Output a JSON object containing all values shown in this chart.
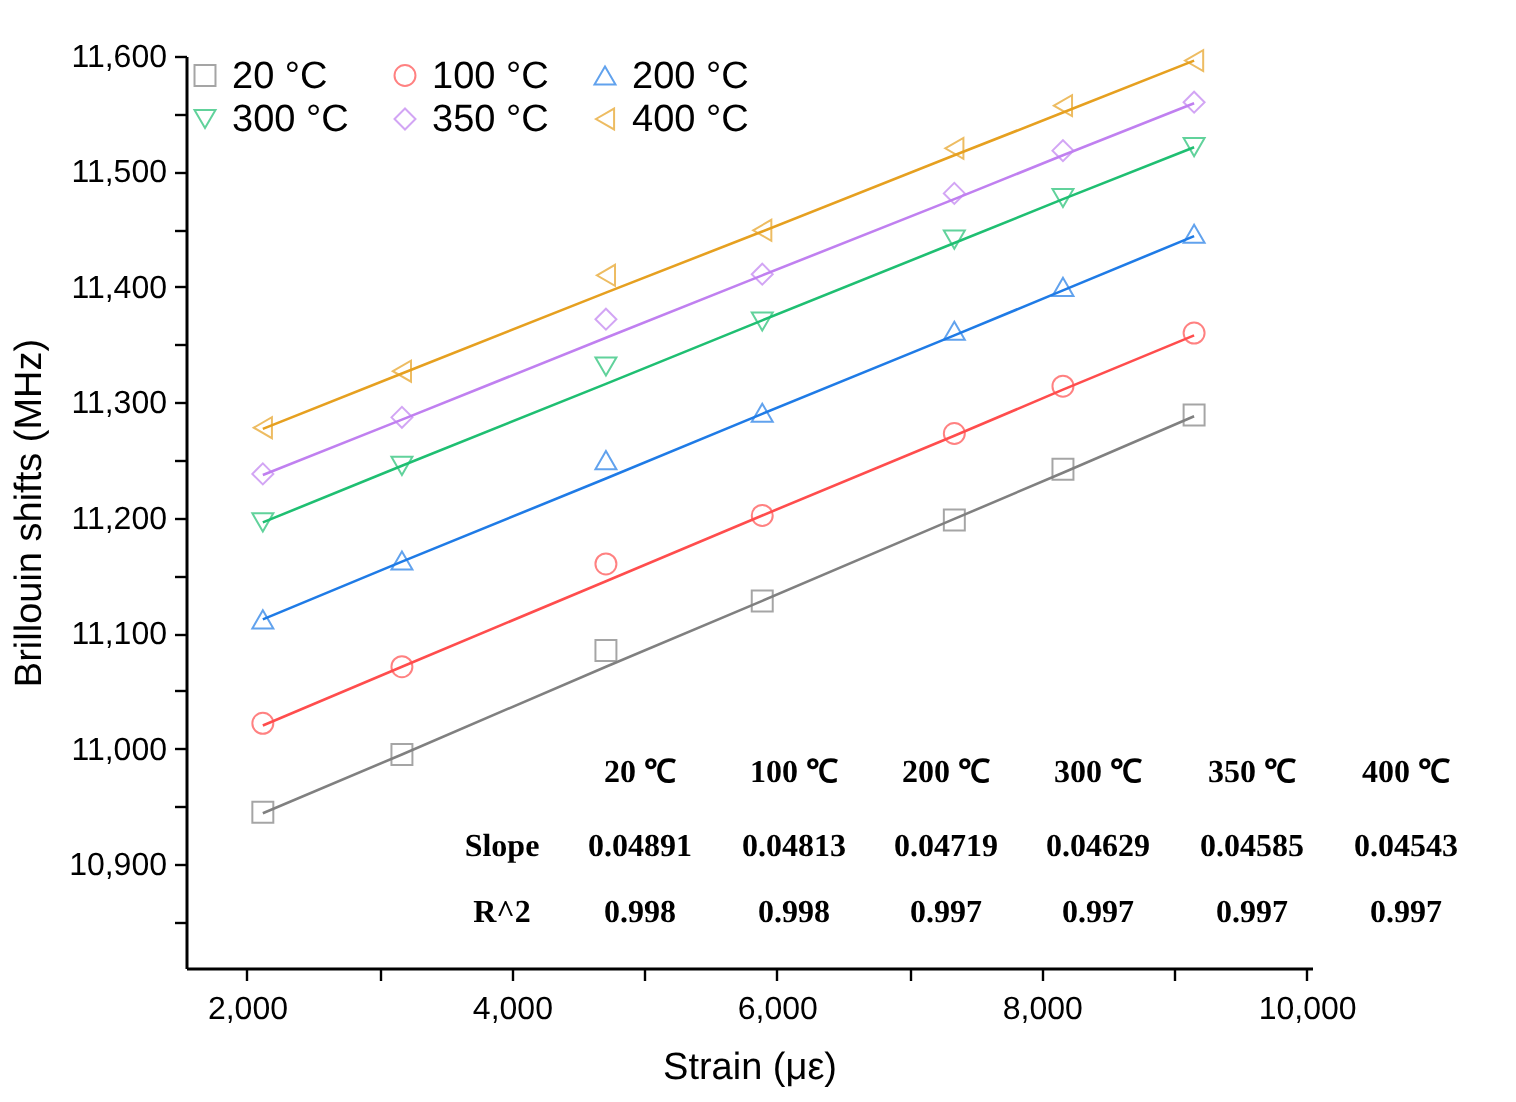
{
  "chart_data": {
    "type": "scatter",
    "xlabel": "Strain (με)",
    "ylabel": "Brillouin shifts (MHz)",
    "x": [
      2120,
      3170,
      4710,
      5890,
      7340,
      8160,
      9150
    ],
    "xlim": [
      1540,
      10040
    ],
    "xticks": [
      {
        "value": 2000,
        "label": "2,000"
      },
      {
        "value": 3000,
        "label": null
      },
      {
        "value": 4000,
        "label": "4,000"
      },
      {
        "value": 5000,
        "label": null
      },
      {
        "value": 6000,
        "label": "6,000"
      },
      {
        "value": 7000,
        "label": null
      },
      {
        "value": 8000,
        "label": "8,000"
      },
      {
        "value": 9000,
        "label": null
      },
      {
        "value": 10000,
        "label": "10,000"
      }
    ],
    "ylim": [
      10810,
      11600
    ],
    "yticks": [
      {
        "value": 10900,
        "label": "10,900"
      },
      {
        "value": 10950,
        "label": null
      },
      {
        "value": 11000,
        "label": "11,000"
      },
      {
        "value": 11050,
        "label": null
      },
      {
        "value": 11100,
        "label": "11,100"
      },
      {
        "value": 11150,
        "label": null
      },
      {
        "value": 11200,
        "label": "11,200"
      },
      {
        "value": 11250,
        "label": null
      },
      {
        "value": 11300,
        "label": "11,300"
      },
      {
        "value": 11350,
        "label": null
      },
      {
        "value": 11400,
        "label": "11,400"
      },
      {
        "value": 11450,
        "label": null
      },
      {
        "value": 11500,
        "label": "11,500"
      },
      {
        "value": 11550,
        "label": null
      },
      {
        "value": 11600,
        "label": "11,600"
      },
      {
        "value": 10850,
        "label": null
      }
    ],
    "grid": false,
    "legend": "top left",
    "series": [
      {
        "name": "20 °C",
        "color": "#808080",
        "marker": "square",
        "values": [
          10945,
          10995,
          11085,
          11128,
          11198,
          11242,
          11289
        ]
      },
      {
        "name": "100 °C",
        "color": "#ff4d4d",
        "marker": "circle",
        "values": [
          11022,
          11071,
          11160,
          11202,
          11273,
          11314,
          11360
        ]
      },
      {
        "name": "200 °C",
        "color": "#1f7be6",
        "marker": "triangle",
        "values": [
          11112,
          11163,
          11250,
          11291,
          11362,
          11400,
          11446
        ]
      },
      {
        "name": "300 °C",
        "color": "#1fbf72",
        "marker": "triangle-down",
        "values": [
          11196,
          11245,
          11331,
          11370,
          11441,
          11477,
          11521
        ]
      },
      {
        "name": "350 °C",
        "color": "#c080f0",
        "marker": "diamond",
        "values": [
          11238,
          11287,
          11372,
          11411,
          11481,
          11518,
          11560
        ]
      },
      {
        "name": "400 °C",
        "color": "#e6a020",
        "marker": "triangle-left",
        "values": [
          11278,
          11327,
          11410,
          11449,
          11520,
          11557,
          11596
        ]
      },
      {
        "type": "line",
        "color": "#808080",
        "values": [
          10944,
          10995,
          11071,
          11128,
          11199,
          11239,
          11288
        ]
      },
      {
        "type": "line",
        "color": "#ff4d4d",
        "values": [
          11020,
          11071,
          11145,
          11202,
          11271,
          11311,
          11358
        ]
      },
      {
        "type": "line",
        "color": "#1f7be6",
        "values": [
          11112,
          11162,
          11234,
          11290,
          11358,
          11397,
          11444
        ]
      },
      {
        "type": "line",
        "color": "#1fbf72",
        "values": [
          11196,
          11245,
          11316,
          11371,
          11438,
          11476,
          11521
        ]
      },
      {
        "type": "line",
        "color": "#c080f0",
        "values": [
          11237,
          11285,
          11356,
          11410,
          11476,
          11514,
          11559
        ]
      },
      {
        "type": "line",
        "color": "#e6a020",
        "values": [
          11277,
          11325,
          11395,
          11448,
          11514,
          11551,
          11596
        ]
      }
    ],
    "annotations": [
      "20 ℃",
      "100 ℃",
      "200 ℃",
      "300 ℃",
      "350 ℃",
      "400 ℃",
      "Slope",
      "0.04891",
      "0.04813",
      "0.04719",
      "0.04629",
      "0.04585",
      "0.04543",
      "R^2",
      "0.998",
      "0.998",
      "0.997",
      "0.997",
      "0.997",
      "0.997"
    ]
  }
}
